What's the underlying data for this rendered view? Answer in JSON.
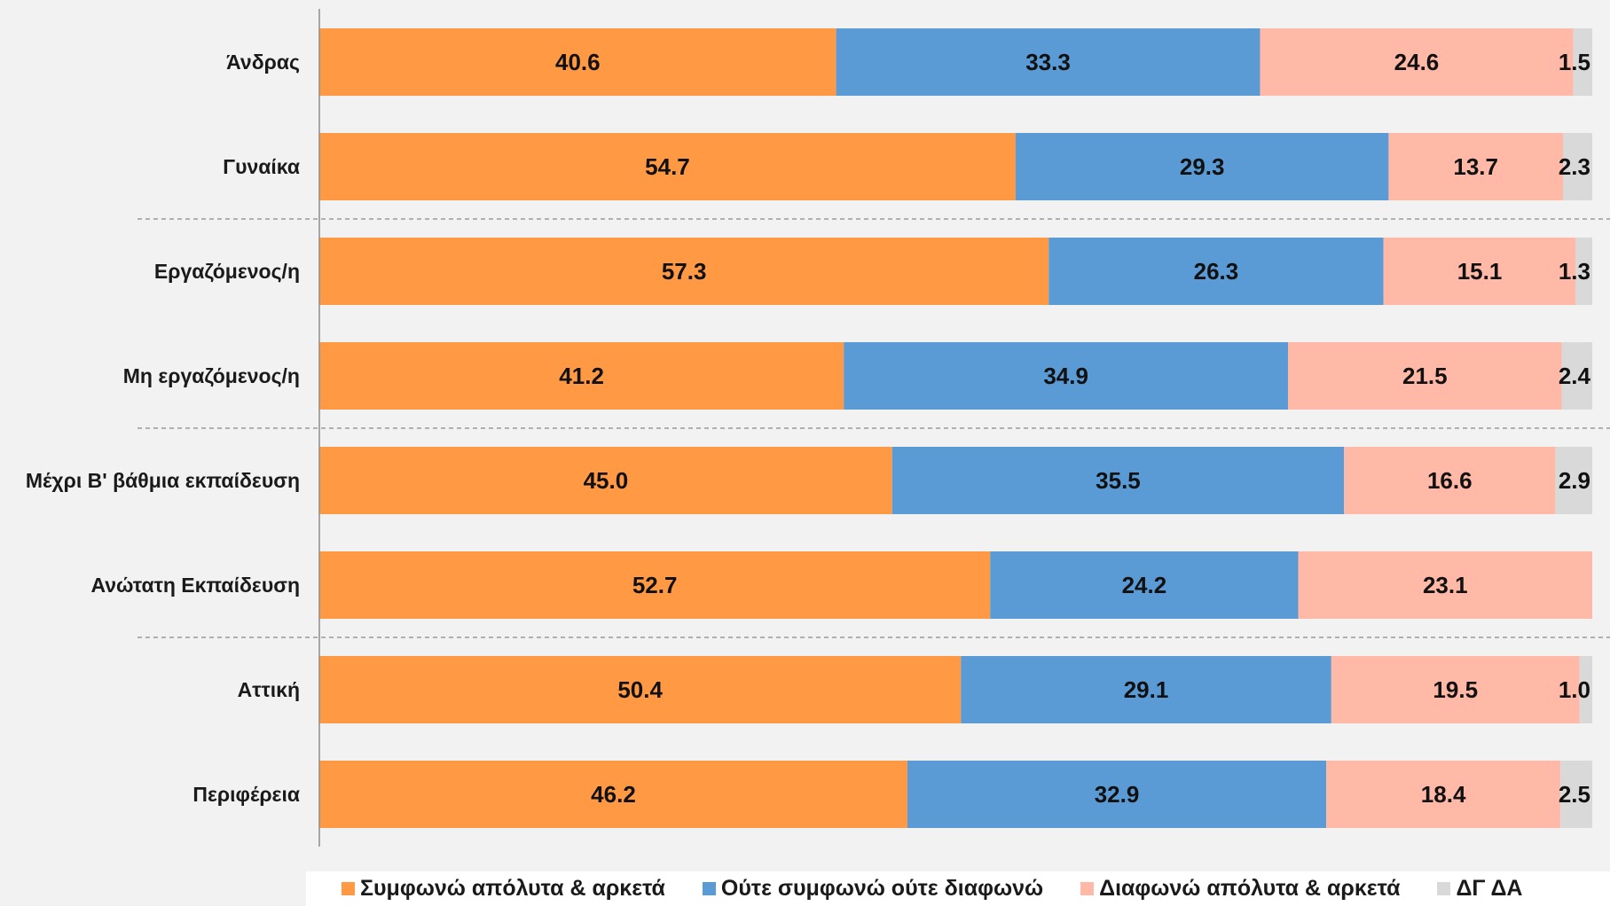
{
  "chart_data": {
    "type": "bar",
    "orientation": "horizontal",
    "stacked": true,
    "categories": [
      "Άνδρας",
      "Γυναίκα",
      "Εργαζόμενος/η",
      "Μη εργαζόμενος/η",
      "Μέχρι Β' βάθμια εκπαίδευση",
      "Ανώτατη Εκπαίδευση",
      "Αττική",
      "Περιφέρεια"
    ],
    "series": [
      {
        "name": "Συμφωνώ απόλυτα & αρκετά",
        "color": "#ff9944",
        "values": [
          40.6,
          54.7,
          57.3,
          41.2,
          45.0,
          52.7,
          50.4,
          46.2
        ]
      },
      {
        "name": "Ούτε συμφωνώ ούτε διαφωνώ",
        "color": "#5b9bd5",
        "values": [
          33.3,
          29.3,
          26.3,
          34.9,
          35.5,
          24.2,
          29.1,
          32.9
        ]
      },
      {
        "name": "Διαφωνώ απόλυτα & αρκετά",
        "color": "#ffb9a6",
        "values": [
          24.6,
          13.7,
          15.1,
          21.5,
          16.6,
          23.1,
          19.5,
          18.4
        ]
      },
      {
        "name": "ΔΓ ΔΑ",
        "color": "#d9d9d9",
        "values": [
          1.5,
          2.3,
          1.3,
          2.4,
          2.9,
          null,
          1.0,
          2.5
        ]
      }
    ],
    "value_labels": [
      [
        "40.6",
        "33.3",
        "24.6",
        "1.5"
      ],
      [
        "54.7",
        "29.3",
        "13.7",
        "2.3"
      ],
      [
        "57.3",
        "26.3",
        "15.1",
        "1.3"
      ],
      [
        "41.2",
        "34.9",
        "21.5",
        "2.4"
      ],
      [
        "45.0",
        "35.5",
        "16.6",
        "2.9"
      ],
      [
        "52.7",
        "24.2",
        "23.1",
        ""
      ],
      [
        "50.4",
        "29.1",
        "19.5",
        "1.0"
      ],
      [
        "46.2",
        "32.9",
        "18.4",
        "2.5"
      ]
    ],
    "xlim": [
      0,
      100
    ],
    "group_separators_after": [
      1,
      3,
      5
    ],
    "legend_position": "bottom",
    "grid": false,
    "title": "",
    "xlabel": "",
    "ylabel": ""
  }
}
